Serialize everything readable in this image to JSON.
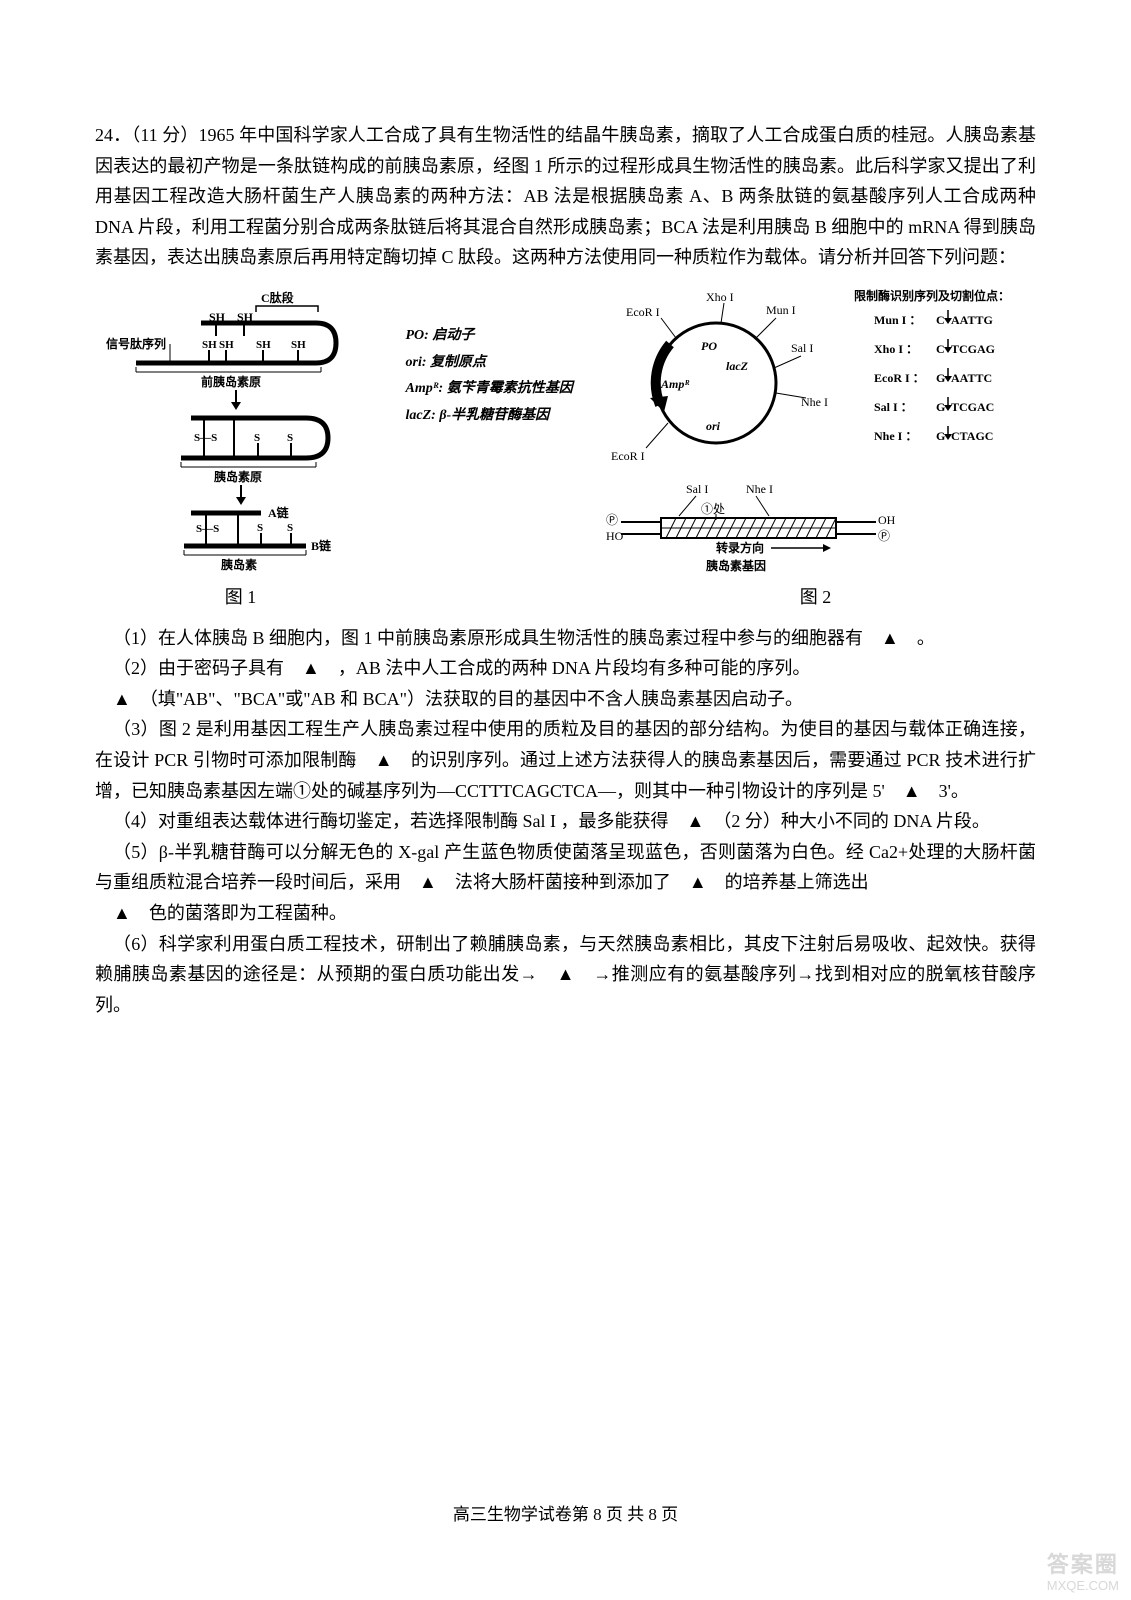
{
  "question": {
    "number": "24．（11 分）",
    "intro": "1965 年中国科学家人工合成了具有生物活性的结晶牛胰岛素，摘取了人工合成蛋白质的桂冠。人胰岛素基因表达的最初产物是一条肽链构成的前胰岛素原，经图 1 所示的过程形成具生物活性的胰岛素。此后科学家又提出了利用基因工程改造大肠杆菌生产人胰岛素的两种方法：AB 法是根据胰岛素 A、B 两条肽链的氨基酸序列人工合成两种 DNA 片段，利用工程菌分别合成两条肽链后将其混合自然形成胰岛素；BCA 法是利用胰岛 B 细胞中的 mRNA 得到胰岛素基因，表达出胰岛素原后再用特定酶切掉 C 肽段。这两种方法使用同一种质粒作为载体。请分析并回答下列问题："
  },
  "fig1": {
    "caption": "图 1",
    "labels": {
      "cpeptide": "C肽段",
      "signal": "信号肽序列",
      "pre": "前胰岛素原",
      "pro": "胰岛素原",
      "ins": "胰岛素",
      "achain": "A链",
      "bchain": "B链",
      "sh": "SH",
      "ss": "S—S",
      "s": "S"
    }
  },
  "legend": {
    "po": "PO: 启动子",
    "ori": "ori: 复制原点",
    "amp": "Ampᴿ: 氨苄青霉素抗性基因",
    "lacz": "lacZ: β-半乳糖苷酶基因"
  },
  "plasmid": {
    "enzymes": {
      "ecor1a": "EcoR I",
      "xho1": "Xho I",
      "mun1": "Mun I",
      "sal1": "Sal I",
      "nhe1": "Nhe I",
      "ecor1b": "EcoR I"
    },
    "inner": {
      "po": "PO",
      "lacz": "lacZ",
      "amp": "Ampᴿ",
      "ori": "ori"
    }
  },
  "enzyme_table": {
    "title": "限制酶识别序列及切割位点：",
    "rows": [
      {
        "name": "Mun I ：",
        "seq_left": "C",
        "seq_right": "AATTG"
      },
      {
        "name": "Xho I ：",
        "seq_left": "C",
        "seq_right": "TCGAG"
      },
      {
        "name": "EcoR I ：",
        "seq_left": "G",
        "seq_right": "AATTC"
      },
      {
        "name": "Sal I ：",
        "seq_left": "G",
        "seq_right": "TCGAC"
      },
      {
        "name": "Nhe I ：",
        "seq_left": "G",
        "seq_right": "CTAGC"
      }
    ]
  },
  "gene_diagram": {
    "sal": "Sal I",
    "nhe": "Nhe I",
    "mark1": "①处",
    "p": "Ⓟ",
    "oh": "OH",
    "ho": "HO",
    "transcribe": "转录方向",
    "label": "胰岛素基因",
    "caption": "图 2"
  },
  "subq": {
    "q1": "（1）在人体胰岛 B 细胞内，图 1 中前胰岛素原形成具生物活性的胰岛素过程中参与的细胞器有　",
    "q1_end": "　。",
    "q2": "（2）由于密码子具有　",
    "q2_mid": "　，AB 法中人工合成的两种 DNA 片段均有多种可能的序列。",
    "q2b_blank_after": "　（填\"AB\"、\"BCA\"或\"AB 和 BCA\"）法获取的目的基因中不含人胰岛素基因启动子。",
    "q3": "（3）图 2 是利用基因工程生产人胰岛素过程中使用的质粒及目的基因的部分结构。为使目的基因与载体正确连接，在设计 PCR 引物时可添加限制酶　",
    "q3_mid": "　的识别序列。通过上述方法获得人的胰岛素基因后，需要通过 PCR 技术进行扩增，已知胰岛素基因左端①处的碱基序列为—CCTTTCAGCTCA—，则其中一种引物设计的序列是 5'　",
    "q3_end": "　3'。",
    "q4": "（4）对重组表达载体进行酶切鉴定，若选择限制酶 Sal I ，最多能获得　",
    "q4_end": "　（2 分）种大小不同的 DNA 片段。",
    "q5": "（5）β-半乳糖苷酶可以分解无色的 X-gal 产生蓝色物质使菌落呈现蓝色，否则菌落为白色。经 Ca2+处理的大肠杆菌与重组质粒混合培养一段时间后，采用　",
    "q5_mid": "　法将大肠杆菌接种到添加了　",
    "q5_end": "　的培养基上筛选出",
    "q5b_end": "　色的菌落即为工程菌种。",
    "q6": "（6）科学家利用蛋白质工程技术，研制出了赖脯胰岛素，与天然胰岛素相比，其皮下注射后易吸收、起效快。获得赖脯胰岛素基因的途径是：从预期的蛋白质功能出发→　",
    "q6_end": "　→推测应有的氨基酸序列→找到相对应的脱氧核苷酸序列。"
  },
  "blank": "▲",
  "footer": "高三生物学试卷第 8 页 共 8 页",
  "watermark": {
    "line1": "答案圈",
    "line2": "MXQE.COM"
  },
  "colors": {
    "text": "#000000",
    "bg": "#ffffff",
    "wm": "#d8d8d8"
  }
}
